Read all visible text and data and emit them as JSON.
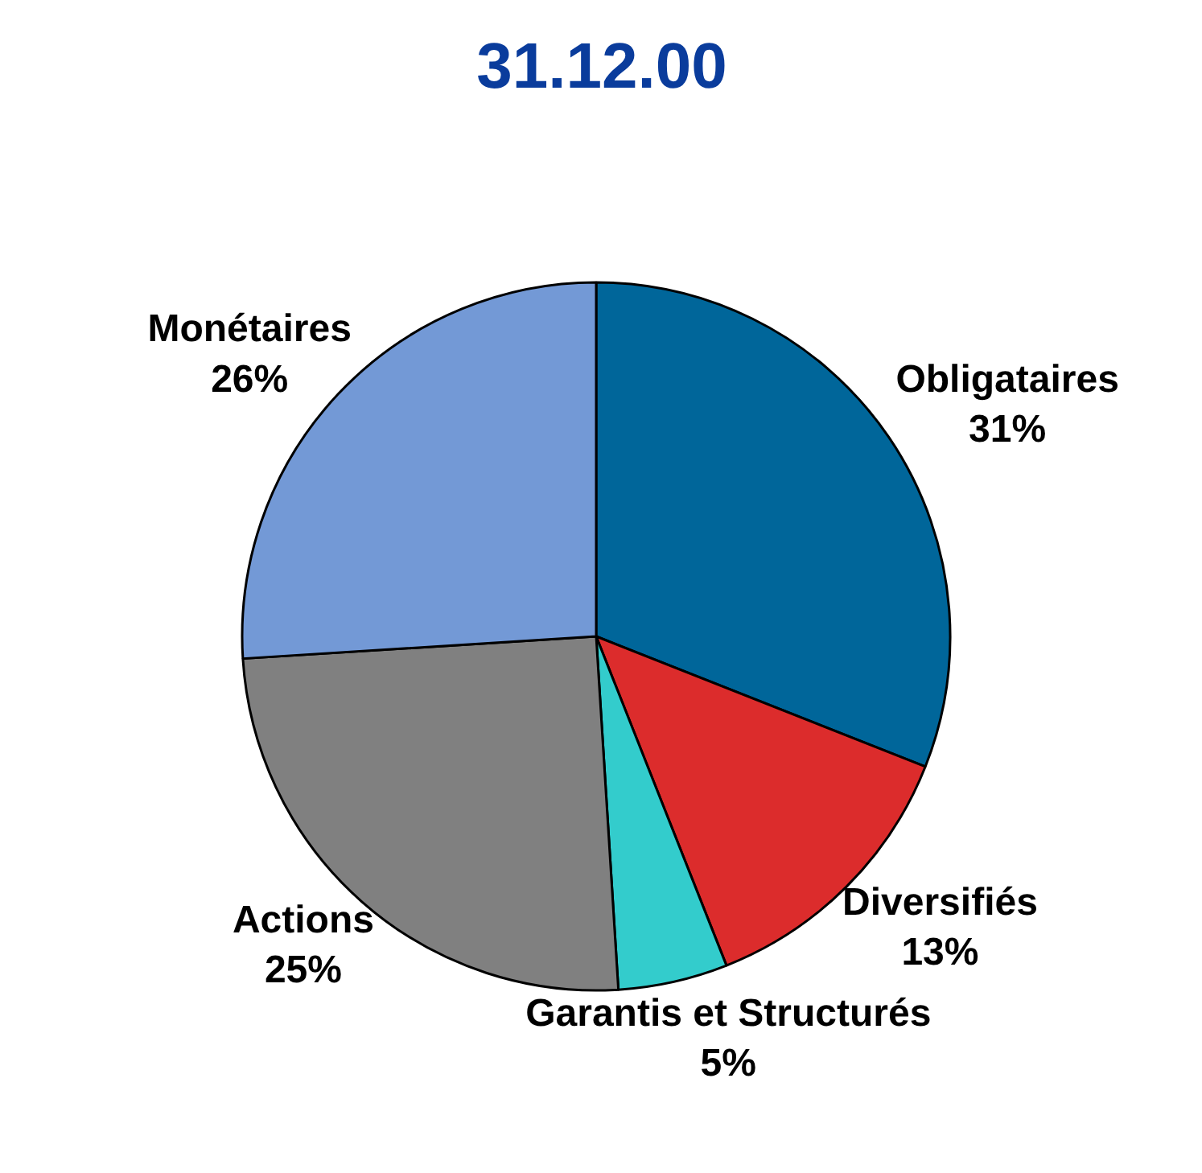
{
  "chart_data": {
    "type": "pie",
    "title": "31.12.00",
    "categories": [
      "Obligataires",
      "Diversifiés",
      "Garantis et Structurés",
      "Actions",
      "Monétaires"
    ],
    "values": [
      31,
      13,
      5,
      25,
      26
    ],
    "colors": [
      "#00669a",
      "#dc2c2c",
      "#33cccc",
      "#808080",
      "#7399d6"
    ],
    "value_labels": [
      "31%",
      "13%",
      "5%",
      "25%",
      "26%"
    ]
  }
}
